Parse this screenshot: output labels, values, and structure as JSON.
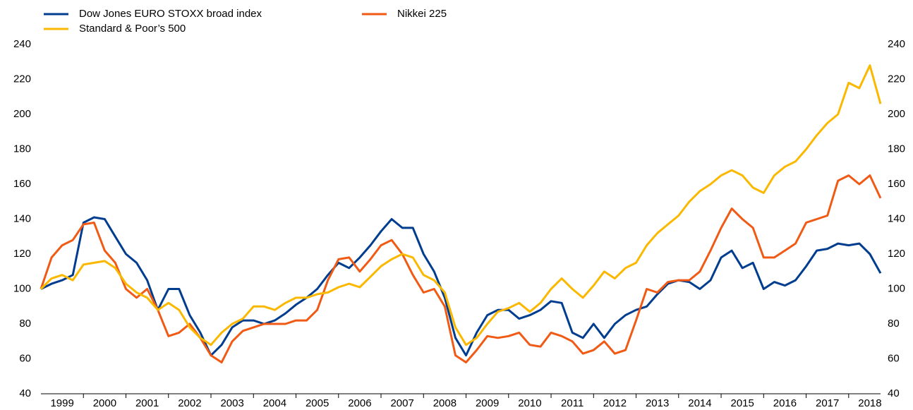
{
  "chart_data": {
    "type": "line",
    "x": [
      1999,
      1999.25,
      1999.5,
      1999.75,
      2000,
      2000.25,
      2000.5,
      2000.75,
      2001,
      2001.25,
      2001.5,
      2001.75,
      2002,
      2002.25,
      2002.5,
      2002.75,
      2003,
      2003.25,
      2003.5,
      2003.75,
      2004,
      2004.25,
      2004.5,
      2004.75,
      2005,
      2005.25,
      2005.5,
      2005.75,
      2006,
      2006.25,
      2006.5,
      2006.75,
      2007,
      2007.25,
      2007.5,
      2007.75,
      2008,
      2008.25,
      2008.5,
      2008.75,
      2009,
      2009.25,
      2009.5,
      2009.75,
      2010,
      2010.25,
      2010.5,
      2010.75,
      2011,
      2011.25,
      2011.5,
      2011.75,
      2012,
      2012.25,
      2012.5,
      2012.75,
      2013,
      2013.25,
      2013.5,
      2013.75,
      2014,
      2014.25,
      2014.5,
      2014.75,
      2015,
      2015.25,
      2015.5,
      2015.75,
      2016,
      2016.25,
      2016.5,
      2016.75,
      2017,
      2017.25,
      2017.5,
      2017.75,
      2018,
      2018.25,
      2018.5,
      2018.75
    ],
    "series": [
      {
        "name": "Dow Jones EURO STOXX broad index",
        "color": "#003d8f",
        "values": [
          100,
          103,
          105,
          108,
          138,
          141,
          140,
          130,
          120,
          115,
          105,
          88,
          100,
          100,
          85,
          75,
          62,
          68,
          78,
          82,
          82,
          80,
          82,
          86,
          91,
          95,
          100,
          108,
          115,
          112,
          118,
          125,
          133,
          140,
          135,
          135,
          120,
          110,
          95,
          72,
          62,
          75,
          85,
          88,
          88,
          83,
          85,
          88,
          93,
          92,
          75,
          72,
          80,
          72,
          80,
          85,
          88,
          90,
          97,
          103,
          105,
          104,
          100,
          105,
          118,
          122,
          112,
          115,
          100,
          104,
          102,
          105,
          113,
          122,
          123,
          126,
          125,
          126,
          120,
          109
        ]
      },
      {
        "name": "Nikkei 225",
        "color": "#f05a14",
        "values": [
          100,
          118,
          125,
          128,
          137,
          138,
          122,
          115,
          100,
          95,
          100,
          88,
          73,
          75,
          80,
          72,
          62,
          58,
          70,
          76,
          78,
          80,
          80,
          80,
          82,
          82,
          88,
          105,
          117,
          118,
          110,
          117,
          125,
          128,
          120,
          108,
          98,
          100,
          90,
          62,
          58,
          65,
          73,
          72,
          73,
          75,
          68,
          67,
          75,
          73,
          70,
          63,
          65,
          70,
          63,
          65,
          82,
          100,
          98,
          104,
          105,
          105,
          110,
          122,
          135,
          146,
          140,
          135,
          118,
          118,
          122,
          126,
          138,
          140,
          142,
          162,
          165,
          160,
          165,
          152
        ]
      },
      {
        "name": "Standard & Poor’s 500",
        "color": "#fbb800",
        "values": [
          100,
          106,
          108,
          105,
          114,
          115,
          116,
          112,
          103,
          98,
          95,
          88,
          92,
          88,
          78,
          72,
          68,
          75,
          80,
          83,
          90,
          90,
          88,
          92,
          95,
          95,
          97,
          98,
          101,
          103,
          101,
          107,
          113,
          117,
          120,
          118,
          108,
          105,
          98,
          78,
          68,
          72,
          80,
          87,
          89,
          92,
          87,
          92,
          100,
          106,
          100,
          95,
          102,
          110,
          106,
          112,
          115,
          125,
          132,
          137,
          142,
          150,
          156,
          160,
          165,
          168,
          165,
          158,
          155,
          165,
          170,
          173,
          180,
          188,
          195,
          200,
          218,
          215,
          228,
          206
        ]
      }
    ],
    "xlim": [
      1999,
      2018.75
    ],
    "xticks": [
      {
        "value": 1999.5,
        "label": "1999"
      },
      {
        "value": 2000.5,
        "label": "2000"
      },
      {
        "value": 2001.5,
        "label": "2001"
      },
      {
        "value": 2002.5,
        "label": "2002"
      },
      {
        "value": 2003.5,
        "label": "2003"
      },
      {
        "value": 2004.5,
        "label": "2004"
      },
      {
        "value": 2005.5,
        "label": "2005"
      },
      {
        "value": 2006.5,
        "label": "2006"
      },
      {
        "value": 2007.5,
        "label": "2007"
      },
      {
        "value": 2008.5,
        "label": "2008"
      },
      {
        "value": 2009.5,
        "label": "2009"
      },
      {
        "value": 2010.5,
        "label": "2010"
      },
      {
        "value": 2011.5,
        "label": "2011"
      },
      {
        "value": 2012.5,
        "label": "2012"
      },
      {
        "value": 2013.5,
        "label": "2013"
      },
      {
        "value": 2014.5,
        "label": "2014"
      },
      {
        "value": 2015.5,
        "label": "2015"
      },
      {
        "value": 2016.5,
        "label": "2016"
      },
      {
        "value": 2017.5,
        "label": "2017"
      },
      {
        "value": 2018.5,
        "label": "2018"
      }
    ],
    "ylim": [
      40,
      240
    ],
    "yticks": [
      40,
      60,
      80,
      100,
      120,
      140,
      160,
      180,
      200,
      220,
      240
    ],
    "y2lim": [
      40,
      240
    ],
    "y2ticks": [
      40,
      60,
      80,
      100,
      120,
      140,
      160,
      180,
      200,
      220,
      240
    ],
    "legend": "top-left",
    "grid": false
  }
}
